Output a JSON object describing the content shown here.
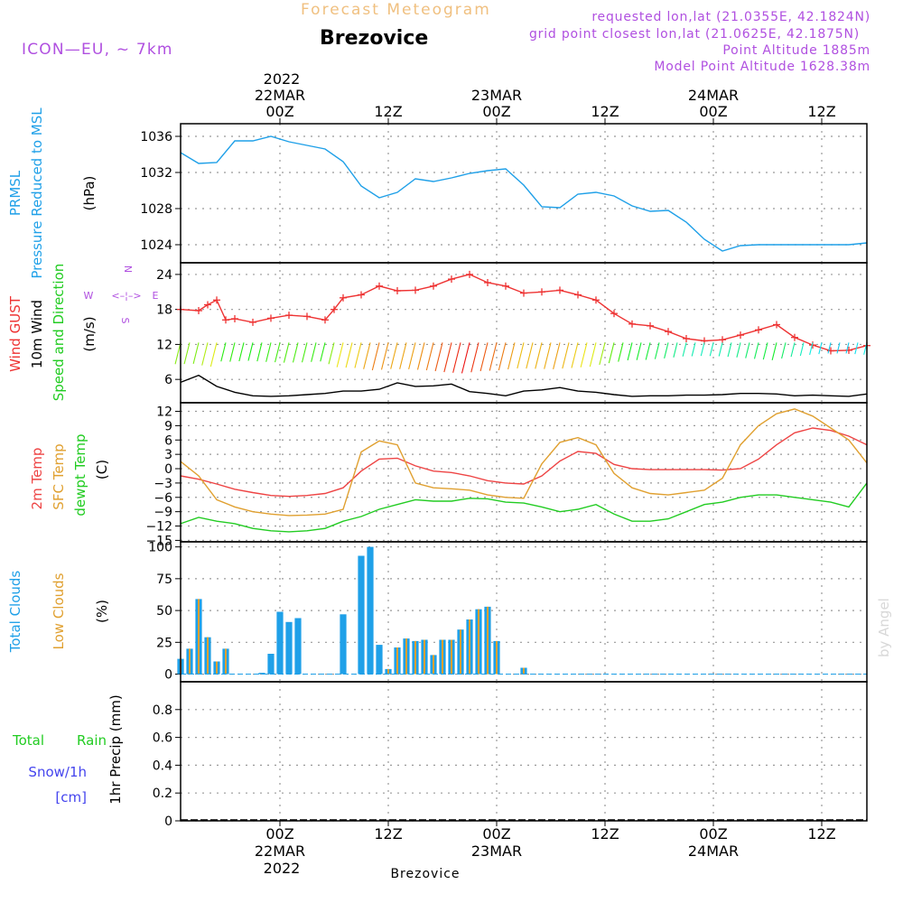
{
  "header": {
    "subtitle": "Forecast Meteogram",
    "station": "Brezovice",
    "model": "ICON—EU, ~ 7km",
    "requested": "requested lon,lat (21.0355E, 42.1824N)",
    "gridpoint": "grid point closest lon,lat (21.0625E, 42.1875N)",
    "altitude": "Point Altitude 1885m",
    "model_altitude": "Model Point Altitude 1628.38m",
    "footer_station": "Brezovice",
    "watermark": "by Angel"
  },
  "time_axis": {
    "top_year": "2022",
    "ticks": [
      {
        "hour": 0,
        "label": "00Z",
        "date": "22MAR"
      },
      {
        "hour": 12,
        "label": "12Z",
        "date": ""
      },
      {
        "hour": 24,
        "label": "00Z",
        "date": "23MAR"
      },
      {
        "hour": 36,
        "label": "12Z",
        "date": ""
      },
      {
        "hour": 48,
        "label": "00Z",
        "date": "24MAR"
      },
      {
        "hour": 60,
        "label": "12Z",
        "date": ""
      }
    ],
    "start_hour": -11,
    "end_hour": 65,
    "bottom_year": "2022"
  },
  "colors": {
    "pressure": "#1fa0e8",
    "gust": "#ee3333",
    "wind": "#000000",
    "temp": "#ee4444",
    "sfc_temp": "#e0a030",
    "dewpt": "#22cc22",
    "total_cloud": "#1fa0e8",
    "low_cloud": "#e0a030",
    "rain": "#22cc22",
    "snow": "#4444ee",
    "compass": "#b050e0",
    "header_purple": "#b050e0",
    "header_orange": "#f0c080"
  },
  "chart_data": [
    {
      "type": "line",
      "panel": "pressure",
      "ylabel": [
        "PRMSL",
        "Pressure Reduced to MSL",
        "(hPa)"
      ],
      "ylim": [
        1022,
        1037.4
      ],
      "yticks": [
        1024,
        1028,
        1032,
        1036
      ],
      "series": [
        {
          "x": [
            -11,
            -9,
            -7,
            -5,
            -3,
            -1,
            1,
            3,
            5,
            7,
            9,
            11,
            13,
            15,
            17,
            19,
            21,
            23,
            25,
            27,
            29,
            31,
            33,
            35,
            37,
            39,
            41,
            43,
            45,
            47,
            49,
            51,
            53,
            55,
            57,
            59,
            61,
            63,
            65
          ],
          "values": [
            1034.2,
            1033.0,
            1033.1,
            1035.5,
            1035.5,
            1036.0,
            1035.4,
            1035.0,
            1034.6,
            1033.2,
            1030.5,
            1029.2,
            1029.8,
            1031.3,
            1031.0,
            1031.4,
            1031.9,
            1032.2,
            1032.4,
            1030.6,
            1028.2,
            1028.1,
            1029.6,
            1029.8,
            1029.4,
            1028.3,
            1027.7,
            1027.8,
            1026.5,
            1024.6,
            1023.3,
            1023.9,
            1024.0,
            1024.0,
            1024.0,
            1024.0,
            1024.0,
            1024.0,
            1024.2
          ]
        }
      ]
    },
    {
      "type": "line",
      "panel": "wind",
      "ylabel": [
        "Wind GUST",
        "10m Wind",
        "Speed and Direction",
        "(m/s)"
      ],
      "compass": [
        "N",
        "W",
        "E",
        "S"
      ],
      "ylim": [
        2,
        26
      ],
      "yticks": [
        6,
        12,
        18,
        24
      ],
      "series": [
        {
          "name": "Wind GUST",
          "x": [
            -11,
            -9,
            -8,
            -7,
            -6,
            -5,
            -3,
            -1,
            1,
            3,
            5,
            6,
            7,
            9,
            11,
            13,
            15,
            17,
            19,
            21,
            23,
            25,
            27,
            29,
            31,
            33,
            35,
            37,
            39,
            41,
            43,
            45,
            47,
            49,
            51,
            53,
            55,
            57,
            59,
            61,
            63,
            65
          ],
          "values": [
            18.0,
            17.8,
            18.8,
            19.6,
            16.2,
            16.4,
            15.8,
            16.5,
            17.0,
            16.8,
            16.2,
            18.0,
            20.0,
            20.5,
            22.0,
            21.2,
            21.3,
            22.0,
            23.2,
            24.0,
            22.6,
            22.0,
            20.8,
            21.0,
            21.3,
            20.5,
            19.6,
            17.3,
            15.5,
            15.2,
            14.2,
            13.0,
            12.6,
            12.8,
            13.6,
            14.5,
            15.4,
            13.2,
            11.9,
            10.9,
            11.0,
            11.8
          ]
        },
        {
          "name": "10m Wind",
          "x": [
            -11,
            -9,
            -7,
            -5,
            -3,
            -1,
            1,
            3,
            5,
            7,
            9,
            11,
            13,
            15,
            17,
            19,
            21,
            23,
            25,
            27,
            29,
            31,
            33,
            35,
            37,
            39,
            41,
            43,
            45,
            47,
            49,
            51,
            53,
            55,
            57,
            59,
            61,
            63,
            65
          ],
          "values": [
            5.5,
            6.7,
            4.8,
            3.8,
            3.2,
            3.1,
            3.2,
            3.4,
            3.6,
            4.0,
            4.0,
            4.3,
            5.4,
            4.8,
            4.9,
            5.2,
            3.9,
            3.6,
            3.2,
            4.0,
            4.2,
            4.6,
            4.0,
            3.8,
            3.4,
            3.1,
            3.2,
            3.2,
            3.3,
            3.3,
            3.4,
            3.6,
            3.6,
            3.5,
            3.2,
            3.3,
            3.2,
            3.1,
            3.5
          ]
        }
      ]
    },
    {
      "type": "line",
      "panel": "temperature",
      "ylabel": [
        "2m Temp",
        "SFC Temp",
        "dewpt Temp",
        "(C)"
      ],
      "ylim": [
        -15.3,
        13.8
      ],
      "yticks": [
        12,
        9,
        6,
        3,
        0,
        -3,
        -6,
        -9,
        -12,
        -15
      ],
      "series": [
        {
          "name": "2m Temp",
          "x": [
            -11,
            -9,
            -7,
            -5,
            -3,
            -1,
            1,
            3,
            5,
            7,
            9,
            11,
            13,
            15,
            17,
            19,
            21,
            23,
            25,
            27,
            29,
            31,
            33,
            35,
            37,
            39,
            41,
            43,
            45,
            47,
            49,
            51,
            53,
            55,
            57,
            59,
            61,
            63,
            65
          ],
          "values": [
            -1.5,
            -2.2,
            -3.2,
            -4.3,
            -5.0,
            -5.6,
            -5.8,
            -5.6,
            -5.2,
            -4.0,
            -0.5,
            2.0,
            2.2,
            0.6,
            -0.5,
            -0.8,
            -1.5,
            -2.5,
            -3.0,
            -3.2,
            -1.5,
            1.6,
            3.6,
            3.2,
            0.9,
            0.0,
            -0.2,
            -0.2,
            -0.2,
            -0.2,
            -0.3,
            0.0,
            2.0,
            5.0,
            7.5,
            8.5,
            8.0,
            6.8,
            5.0
          ]
        },
        {
          "name": "SFC Temp",
          "x": [
            -11,
            -9,
            -7,
            -5,
            -3,
            -1,
            1,
            3,
            5,
            7,
            9,
            11,
            13,
            15,
            17,
            19,
            21,
            23,
            25,
            27,
            29,
            31,
            33,
            35,
            37,
            39,
            41,
            43,
            45,
            47,
            49,
            51,
            53,
            55,
            57,
            59,
            61,
            63,
            65
          ],
          "values": [
            1.5,
            -1.5,
            -6.5,
            -8.0,
            -9.0,
            -9.5,
            -9.8,
            -9.7,
            -9.5,
            -8.5,
            3.5,
            5.8,
            5.0,
            -3.0,
            -4.0,
            -4.2,
            -4.5,
            -5.5,
            -6.0,
            -6.2,
            1.0,
            5.5,
            6.5,
            5.0,
            -1.0,
            -4.0,
            -5.2,
            -5.5,
            -5.0,
            -4.5,
            -2.0,
            5.0,
            9.0,
            11.5,
            12.5,
            11.0,
            8.5,
            6.0,
            1.2
          ]
        },
        {
          "name": "dewpt Temp",
          "x": [
            -11,
            -9,
            -7,
            -5,
            -3,
            -1,
            1,
            3,
            5,
            7,
            9,
            11,
            13,
            15,
            17,
            19,
            21,
            23,
            25,
            27,
            29,
            31,
            33,
            35,
            37,
            39,
            41,
            43,
            45,
            47,
            49,
            51,
            53,
            55,
            57,
            59,
            61,
            63,
            65
          ],
          "values": [
            -11.5,
            -10.2,
            -11.0,
            -11.5,
            -12.5,
            -13.0,
            -13.2,
            -13.0,
            -12.5,
            -11.0,
            -10.0,
            -8.5,
            -7.5,
            -6.5,
            -6.8,
            -6.8,
            -6.2,
            -6.3,
            -7.0,
            -7.2,
            -8.0,
            -9.0,
            -8.5,
            -7.5,
            -9.5,
            -11.0,
            -11.0,
            -10.5,
            -9.0,
            -7.5,
            -7.0,
            -6.0,
            -5.5,
            -5.5,
            -6.0,
            -6.5,
            -7.0,
            -8.0,
            -3.0
          ]
        }
      ]
    },
    {
      "type": "bar",
      "panel": "clouds",
      "ylabel": [
        "Total Clouds",
        "Low Clouds",
        "(%)"
      ],
      "ylim": [
        -6,
        104
      ],
      "yticks": [
        0,
        25,
        50,
        75,
        100
      ],
      "x": [
        -11,
        -10,
        -9,
        -8,
        -7,
        -6,
        -5,
        -4,
        -3,
        -2,
        -1,
        0,
        1,
        2,
        3,
        4,
        5,
        6,
        7,
        8,
        9,
        10,
        11,
        12,
        13,
        14,
        15,
        16,
        17,
        18,
        19,
        20,
        21,
        22,
        23,
        24,
        25,
        26,
        27,
        28,
        29,
        30,
        31,
        32,
        33,
        34,
        35,
        36,
        37,
        38,
        39,
        40,
        41,
        42,
        43,
        44,
        45,
        46,
        47,
        48,
        49,
        50,
        51,
        52,
        53,
        54,
        55,
        56,
        57,
        58,
        59,
        60,
        61,
        62,
        63,
        64,
        65
      ],
      "series": [
        {
          "name": "Total Clouds",
          "values": [
            12,
            20,
            59,
            29,
            10,
            20,
            0,
            0,
            0,
            1,
            16,
            49,
            41,
            44,
            0,
            0,
            0,
            0,
            47,
            0,
            93,
            100,
            23,
            4,
            21,
            28,
            26,
            27,
            15,
            27,
            27,
            35,
            43,
            51,
            53,
            26,
            0,
            0,
            5,
            0,
            0,
            0,
            0,
            0,
            0,
            0,
            0,
            0,
            0,
            0,
            0,
            0,
            0,
            0,
            0,
            0,
            0,
            0,
            0,
            0,
            0,
            0,
            0,
            0,
            0,
            0,
            0,
            0,
            0,
            0,
            0,
            0,
            0,
            0,
            0,
            0,
            0
          ]
        },
        {
          "name": "Low Clouds",
          "values": [
            12,
            20,
            59,
            29,
            10,
            20,
            0,
            0,
            0,
            0,
            0,
            0,
            0,
            0,
            0,
            0,
            0,
            0,
            0,
            0,
            0,
            0,
            0,
            4,
            21,
            28,
            26,
            27,
            15,
            27,
            27,
            35,
            43,
            51,
            53,
            26,
            0,
            0,
            5,
            0,
            0,
            0,
            0,
            0,
            0,
            0,
            0,
            0,
            0,
            0,
            0,
            0,
            0,
            0,
            0,
            0,
            0,
            0,
            0,
            0,
            0,
            0,
            0,
            0,
            0,
            0,
            0,
            0,
            0,
            0,
            0,
            0,
            0,
            0,
            0,
            0,
            0
          ]
        }
      ]
    },
    {
      "type": "bar",
      "panel": "precip",
      "ylabel": [
        "1hr Precip (mm)"
      ],
      "legend": [
        "Total",
        "Rain",
        "Snow/1h",
        "[cm]"
      ],
      "ylim": [
        0,
        1.0
      ],
      "yticks": [
        0,
        0.2,
        0.4,
        0.6,
        0.8
      ],
      "ytick_labels": [
        "0",
        "0.2",
        "0.4",
        "0.6",
        "0.8"
      ],
      "values": []
    }
  ]
}
